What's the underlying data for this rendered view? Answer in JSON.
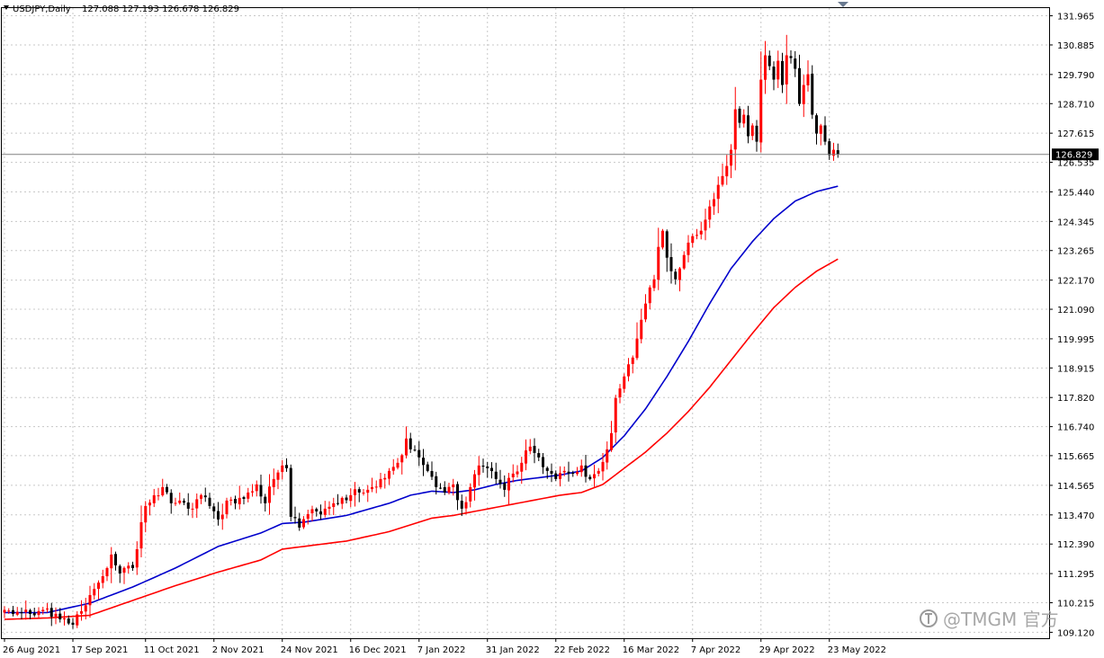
{
  "chart_data": {
    "type": "candlestick",
    "symbol_timeframe": "USDJPY,Daily",
    "ohlc_header": "127.088 127.193 126.678 126.829",
    "current_price_label": "126.829",
    "y_tick_labels": [
      "131.965",
      "130.885",
      "129.790",
      "128.710",
      "127.615",
      "126.535",
      "125.440",
      "124.345",
      "123.265",
      "122.170",
      "121.090",
      "119.995",
      "118.915",
      "117.820",
      "116.740",
      "115.665",
      "114.565",
      "113.470",
      "112.390",
      "111.295",
      "110.215",
      "109.120"
    ],
    "ylim": [
      108.9,
      132.25
    ],
    "x_tick_labels": [
      "26 Aug 2021",
      "17 Sep 2021",
      "11 Oct 2021",
      "2 Nov 2021",
      "24 Nov 2021",
      "16 Dec 2021",
      "7 Jan 2022",
      "31 Jan 2022",
      "22 Feb 2022",
      "16 Mar 2022",
      "7 Apr 2022",
      "29 Apr 2022",
      "23 May 2022"
    ],
    "x_tick_bar_index": [
      0,
      16,
      33,
      49,
      65,
      81,
      97,
      113,
      129,
      145,
      161,
      177,
      193
    ],
    "bars_total": 200,
    "close_anchors": [
      [
        0,
        109.95
      ],
      [
        6,
        109.8
      ],
      [
        10,
        110.0
      ],
      [
        13,
        109.6
      ],
      [
        16,
        109.4
      ],
      [
        18,
        109.9
      ],
      [
        20,
        110.5
      ],
      [
        23,
        111.2
      ],
      [
        24,
        111.5
      ],
      [
        25,
        112.0
      ],
      [
        26,
        111.6
      ],
      [
        27,
        111.3
      ],
      [
        30,
        111.5
      ],
      [
        32,
        113.2
      ],
      [
        33,
        113.8
      ],
      [
        35,
        114.2
      ],
      [
        37,
        114.5
      ],
      [
        39,
        113.9
      ],
      [
        41,
        114.0
      ],
      [
        43,
        113.7
      ],
      [
        46,
        114.2
      ],
      [
        48,
        113.8
      ],
      [
        50,
        113.3
      ],
      [
        52,
        114.0
      ],
      [
        55,
        114.1
      ],
      [
        57,
        114.3
      ],
      [
        59,
        114.6
      ],
      [
        61,
        113.9
      ],
      [
        63,
        114.8
      ],
      [
        65,
        115.3
      ],
      [
        66,
        115.2
      ],
      [
        67,
        113.4
      ],
      [
        69,
        113.0
      ],
      [
        71,
        113.5
      ],
      [
        73,
        113.6
      ],
      [
        75,
        113.7
      ],
      [
        77,
        113.9
      ],
      [
        79,
        114.1
      ],
      [
        81,
        114.2
      ],
      [
        83,
        114.3
      ],
      [
        85,
        114.4
      ],
      [
        88,
        114.8
      ],
      [
        90,
        115.1
      ],
      [
        92,
        115.4
      ],
      [
        94,
        116.3
      ],
      [
        95,
        115.9
      ],
      [
        97,
        115.6
      ],
      [
        99,
        115.1
      ],
      [
        101,
        114.5
      ],
      [
        103,
        114.3
      ],
      [
        105,
        114.6
      ],
      [
        107,
        113.7
      ],
      [
        109,
        114.5
      ],
      [
        111,
        115.3
      ],
      [
        113,
        115.2
      ],
      [
        115,
        114.8
      ],
      [
        117,
        114.4
      ],
      [
        119,
        115.0
      ],
      [
        121,
        115.4
      ],
      [
        123,
        116.0
      ],
      [
        125,
        115.6
      ],
      [
        127,
        115.1
      ],
      [
        129,
        114.8
      ],
      [
        131,
        115.1
      ],
      [
        133,
        115.0
      ],
      [
        135,
        115.3
      ],
      [
        137,
        114.8
      ],
      [
        139,
        115.1
      ],
      [
        141,
        115.9
      ],
      [
        142,
        116.5
      ],
      [
        143,
        117.8
      ],
      [
        145,
        118.6
      ],
      [
        147,
        119.3
      ],
      [
        149,
        120.7
      ],
      [
        150,
        121.3
      ],
      [
        152,
        122.2
      ],
      [
        153,
        123.4
      ],
      [
        154,
        124.0
      ],
      [
        155,
        123.0
      ],
      [
        156,
        122.5
      ],
      [
        157,
        122.2
      ],
      [
        159,
        123.1
      ],
      [
        161,
        123.8
      ],
      [
        163,
        124.0
      ],
      [
        165,
        124.9
      ],
      [
        167,
        125.7
      ],
      [
        169,
        126.4
      ],
      [
        170,
        127.0
      ],
      [
        171,
        128.5
      ],
      [
        172,
        128.0
      ],
      [
        173,
        128.3
      ],
      [
        174,
        127.5
      ],
      [
        175,
        127.9
      ],
      [
        176,
        127.3
      ],
      [
        177,
        129.6
      ],
      [
        178,
        130.5
      ],
      [
        179,
        130.1
      ],
      [
        180,
        129.6
      ],
      [
        181,
        130.3
      ],
      [
        182,
        129.4
      ],
      [
        183,
        130.5
      ],
      [
        184,
        130.4
      ],
      [
        185,
        130.0
      ],
      [
        186,
        128.7
      ],
      [
        187,
        129.4
      ],
      [
        188,
        129.8
      ],
      [
        189,
        128.3
      ],
      [
        190,
        127.6
      ],
      [
        191,
        127.9
      ],
      [
        192,
        127.3
      ],
      [
        193,
        126.8
      ],
      [
        194,
        127.0
      ],
      [
        195,
        126.829
      ]
    ],
    "series": [
      {
        "name": "",
        "color": "#0000cc",
        "points": [
          [
            0,
            109.85
          ],
          [
            10,
            109.85
          ],
          [
            20,
            110.2
          ],
          [
            30,
            110.8
          ],
          [
            40,
            111.5
          ],
          [
            50,
            112.3
          ],
          [
            60,
            112.8
          ],
          [
            65,
            113.15
          ],
          [
            70,
            113.2
          ],
          [
            80,
            113.45
          ],
          [
            90,
            113.9
          ],
          [
            95,
            114.2
          ],
          [
            100,
            114.35
          ],
          [
            105,
            114.3
          ],
          [
            110,
            114.4
          ],
          [
            115,
            114.6
          ],
          [
            120,
            114.75
          ],
          [
            125,
            114.85
          ],
          [
            130,
            114.95
          ],
          [
            135,
            115.1
          ],
          [
            140,
            115.6
          ],
          [
            145,
            116.4
          ],
          [
            150,
            117.4
          ],
          [
            155,
            118.6
          ],
          [
            160,
            119.9
          ],
          [
            165,
            121.3
          ],
          [
            170,
            122.6
          ],
          [
            175,
            123.6
          ],
          [
            180,
            124.45
          ],
          [
            185,
            125.1
          ],
          [
            190,
            125.45
          ],
          [
            195,
            125.65
          ]
        ]
      },
      {
        "name": "",
        "color": "#ff0000",
        "points": [
          [
            0,
            109.6
          ],
          [
            10,
            109.65
          ],
          [
            20,
            109.75
          ],
          [
            30,
            110.3
          ],
          [
            40,
            110.85
          ],
          [
            50,
            111.35
          ],
          [
            60,
            111.8
          ],
          [
            65,
            112.2
          ],
          [
            70,
            112.3
          ],
          [
            80,
            112.5
          ],
          [
            90,
            112.85
          ],
          [
            95,
            113.1
          ],
          [
            100,
            113.35
          ],
          [
            105,
            113.45
          ],
          [
            110,
            113.6
          ],
          [
            115,
            113.75
          ],
          [
            120,
            113.9
          ],
          [
            125,
            114.05
          ],
          [
            130,
            114.2
          ],
          [
            135,
            114.3
          ],
          [
            140,
            114.6
          ],
          [
            145,
            115.2
          ],
          [
            150,
            115.8
          ],
          [
            155,
            116.5
          ],
          [
            160,
            117.3
          ],
          [
            165,
            118.2
          ],
          [
            170,
            119.2
          ],
          [
            175,
            120.2
          ],
          [
            180,
            121.15
          ],
          [
            185,
            121.9
          ],
          [
            190,
            122.5
          ],
          [
            195,
            122.95
          ]
        ]
      }
    ],
    "bull_color": "#ff0000",
    "bear_color": "#000000",
    "grid": true,
    "grid_color": "#c8c8c8"
  },
  "watermark": {
    "icon": "tmgm-logo-icon",
    "text": "@TMGM 官方"
  }
}
